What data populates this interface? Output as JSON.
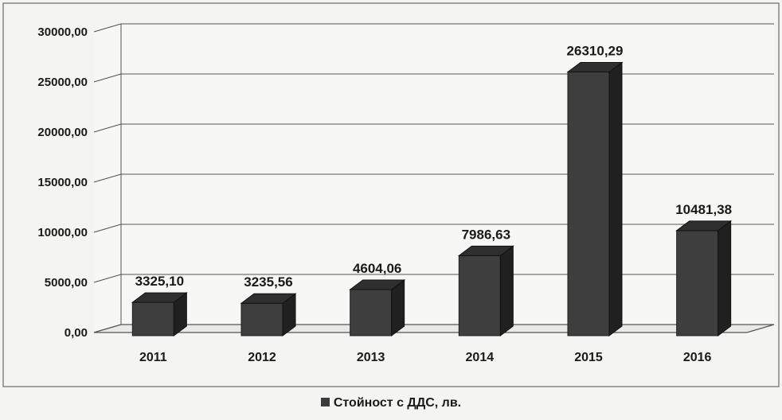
{
  "chart_data": {
    "type": "bar",
    "categories": [
      "2011",
      "2012",
      "2013",
      "2014",
      "2015",
      "2016"
    ],
    "series": [
      {
        "name": "Стойност с ДДС, лв.",
        "values": [
          3325.1,
          3235.56,
          4604.06,
          7986.63,
          26310.29,
          10481.38
        ],
        "value_labels": [
          "3325,10",
          "3235,56",
          "4604,06",
          "7986,63",
          "26310,29",
          "10481,38"
        ]
      }
    ],
    "title": "",
    "xlabel": "",
    "ylabel": "",
    "ylim": [
      0,
      30000
    ],
    "yticks": [
      0,
      5000,
      10000,
      15000,
      20000,
      25000,
      30000
    ],
    "ytick_labels": [
      "0,00",
      "5000,00",
      "10000,00",
      "15000,00",
      "20000,00",
      "25000,00",
      "30000,00"
    ],
    "grid": true,
    "legend_position": "bottom",
    "bar_color": "#3b3b3b"
  }
}
